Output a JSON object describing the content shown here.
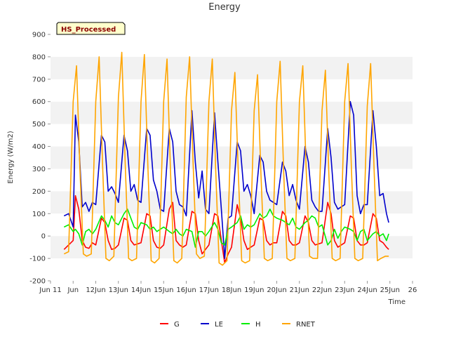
{
  "chart_data": {
    "type": "line",
    "title": "Energy",
    "xlabel": "Time",
    "ylabel": "Energy (W/m2)",
    "badge": "HS_Processed",
    "ylim": [
      -200,
      900
    ],
    "xlim": [
      10,
      26
    ],
    "yticks": [
      -200,
      -100,
      0,
      100,
      200,
      300,
      400,
      500,
      600,
      700,
      800,
      900
    ],
    "xticks": [
      {
        "value": 10,
        "label": "Jun 11"
      },
      {
        "value": 11,
        "label": "Jun"
      },
      {
        "value": 12,
        "label": "12Jun"
      },
      {
        "value": 13,
        "label": "13Jun"
      },
      {
        "value": 14,
        "label": "14Jun"
      },
      {
        "value": 15,
        "label": "15Jun"
      },
      {
        "value": 16,
        "label": "16Jun"
      },
      {
        "value": 17,
        "label": "17Jun"
      },
      {
        "value": 18,
        "label": "18Jun"
      },
      {
        "value": 19,
        "label": "19Jun"
      },
      {
        "value": 20,
        "label": "20Jun"
      },
      {
        "value": 21,
        "label": "21Jun"
      },
      {
        "value": 22,
        "label": "22Jun"
      },
      {
        "value": 23,
        "label": "23Jun"
      },
      {
        "value": 24,
        "label": "24Jun"
      },
      {
        "value": 25,
        "label": "25Jun"
      },
      {
        "value": 26,
        "label": "26"
      }
    ],
    "legend_position": "bottom",
    "grid": "horizontal bands",
    "series": [
      {
        "name": "G",
        "color": "#ff0000",
        "x": [
          10.6,
          10.8,
          11.0,
          11.1,
          11.25,
          11.4,
          11.55,
          11.7,
          11.85,
          12.0,
          12.25,
          12.4,
          12.55,
          12.7,
          12.85,
          13.0,
          13.25,
          13.4,
          13.55,
          13.7,
          13.85,
          14.0,
          14.25,
          14.4,
          14.55,
          14.7,
          14.85,
          15.0,
          15.25,
          15.4,
          15.55,
          15.7,
          15.85,
          16.0,
          16.25,
          16.4,
          16.55,
          16.7,
          16.85,
          17.0,
          17.25,
          17.4,
          17.55,
          17.7,
          17.85,
          18.0,
          18.25,
          18.4,
          18.55,
          18.7,
          18.85,
          19.0,
          19.25,
          19.4,
          19.55,
          19.7,
          19.85,
          20.0,
          20.25,
          20.4,
          20.55,
          20.7,
          20.85,
          21.0,
          21.25,
          21.4,
          21.55,
          21.7,
          21.85,
          22.0,
          22.25,
          22.4,
          22.55,
          22.7,
          22.85,
          23.0,
          23.25,
          23.4,
          23.55,
          23.7,
          23.85,
          24.0,
          24.25,
          24.4,
          24.55,
          24.7,
          24.85,
          24.95
        ],
        "y": [
          -60,
          -40,
          -20,
          180,
          120,
          -20,
          -50,
          -55,
          -30,
          -40,
          80,
          60,
          -20,
          -60,
          -55,
          -40,
          80,
          70,
          -20,
          -40,
          -35,
          -30,
          100,
          90,
          -20,
          -50,
          -55,
          -40,
          120,
          150,
          -20,
          -40,
          -50,
          -40,
          110,
          100,
          -20,
          -80,
          -60,
          -40,
          100,
          90,
          -20,
          -120,
          -80,
          -50,
          140,
          80,
          -20,
          -60,
          -50,
          -40,
          80,
          70,
          -20,
          -40,
          -30,
          -30,
          110,
          90,
          -20,
          -40,
          -40,
          -30,
          90,
          60,
          -20,
          -40,
          -35,
          -30,
          150,
          100,
          -20,
          -50,
          -40,
          -30,
          90,
          80,
          -20,
          -40,
          -40,
          -30,
          100,
          80,
          -20,
          -30,
          -50,
          -60
        ]
      },
      {
        "name": "LE",
        "color": "#0000cc",
        "x": [
          10.6,
          10.8,
          11.0,
          11.1,
          11.25,
          11.4,
          11.55,
          11.7,
          11.85,
          12.0,
          12.25,
          12.4,
          12.55,
          12.7,
          12.85,
          13.0,
          13.25,
          13.4,
          13.55,
          13.7,
          13.85,
          14.0,
          14.25,
          14.4,
          14.55,
          14.7,
          14.85,
          15.0,
          15.25,
          15.4,
          15.55,
          15.7,
          15.85,
          16.0,
          16.25,
          16.4,
          16.55,
          16.7,
          16.85,
          17.0,
          17.25,
          17.4,
          17.55,
          17.7,
          17.85,
          18.0,
          18.25,
          18.4,
          18.55,
          18.7,
          18.85,
          19.0,
          19.25,
          19.4,
          19.55,
          19.7,
          19.85,
          20.0,
          20.25,
          20.4,
          20.55,
          20.7,
          20.85,
          21.0,
          21.25,
          21.4,
          21.55,
          21.7,
          21.85,
          22.0,
          22.25,
          22.4,
          22.55,
          22.7,
          22.85,
          23.0,
          23.25,
          23.4,
          23.55,
          23.7,
          23.85,
          24.0,
          24.25,
          24.4,
          24.55,
          24.7,
          24.85,
          24.95
        ],
        "y": [
          90,
          100,
          40,
          540,
          420,
          130,
          150,
          110,
          150,
          140,
          450,
          420,
          200,
          220,
          190,
          150,
          450,
          380,
          200,
          230,
          160,
          150,
          480,
          450,
          250,
          200,
          120,
          110,
          480,
          420,
          200,
          140,
          130,
          90,
          560,
          330,
          170,
          290,
          120,
          100,
          550,
          330,
          120,
          -100,
          80,
          90,
          420,
          380,
          200,
          230,
          180,
          100,
          360,
          330,
          200,
          160,
          150,
          140,
          330,
          290,
          180,
          230,
          160,
          120,
          400,
          330,
          160,
          130,
          110,
          110,
          480,
          350,
          150,
          120,
          130,
          140,
          600,
          540,
          180,
          100,
          140,
          140,
          560,
          400,
          180,
          190,
          100,
          60
        ]
      },
      {
        "name": "H",
        "color": "#00ee00",
        "x": [
          10.6,
          10.8,
          11.0,
          11.1,
          11.25,
          11.4,
          11.55,
          11.7,
          11.85,
          12.0,
          12.25,
          12.4,
          12.55,
          12.7,
          12.85,
          13.0,
          13.25,
          13.4,
          13.55,
          13.7,
          13.85,
          14.0,
          14.25,
          14.4,
          14.55,
          14.7,
          14.85,
          15.0,
          15.25,
          15.4,
          15.55,
          15.7,
          15.85,
          16.0,
          16.25,
          16.4,
          16.55,
          16.7,
          16.85,
          17.0,
          17.25,
          17.4,
          17.55,
          17.7,
          17.85,
          18.0,
          18.25,
          18.4,
          18.55,
          18.7,
          18.85,
          19.0,
          19.25,
          19.4,
          19.55,
          19.7,
          19.85,
          20.0,
          20.25,
          20.4,
          20.55,
          20.7,
          20.85,
          21.0,
          21.25,
          21.4,
          21.55,
          21.7,
          21.85,
          22.0,
          22.25,
          22.4,
          22.55,
          22.7,
          22.85,
          23.0,
          23.25,
          23.4,
          23.55,
          23.7,
          23.85,
          24.0,
          24.25,
          24.4,
          24.55,
          24.7,
          24.85,
          24.95
        ],
        "y": [
          40,
          50,
          20,
          30,
          10,
          -40,
          20,
          30,
          10,
          30,
          90,
          70,
          40,
          90,
          60,
          50,
          100,
          120,
          80,
          40,
          30,
          60,
          50,
          30,
          40,
          20,
          30,
          40,
          20,
          10,
          30,
          10,
          0,
          30,
          20,
          -50,
          20,
          20,
          0,
          20,
          60,
          30,
          -30,
          -40,
          30,
          40,
          60,
          90,
          30,
          50,
          40,
          50,
          100,
          80,
          90,
          120,
          90,
          80,
          70,
          60,
          50,
          80,
          40,
          30,
          60,
          70,
          90,
          80,
          40,
          50,
          -40,
          -20,
          30,
          -10,
          20,
          40,
          30,
          20,
          -20,
          20,
          30,
          -20,
          10,
          20,
          0,
          10,
          -20,
          10
        ]
      },
      {
        "name": "RNET",
        "color": "#ffa500",
        "x": [
          10.6,
          10.8,
          11.0,
          11.15,
          11.3,
          11.45,
          11.6,
          11.8,
          12.0,
          12.15,
          12.3,
          12.45,
          12.6,
          12.8,
          13.0,
          13.15,
          13.3,
          13.45,
          13.6,
          13.8,
          14.0,
          14.15,
          14.3,
          14.45,
          14.6,
          14.8,
          15.0,
          15.15,
          15.3,
          15.45,
          15.6,
          15.8,
          16.0,
          16.15,
          16.3,
          16.45,
          16.6,
          16.8,
          17.0,
          17.15,
          17.3,
          17.45,
          17.6,
          17.8,
          18.0,
          18.15,
          18.3,
          18.45,
          18.6,
          18.8,
          19.0,
          19.15,
          19.3,
          19.45,
          19.6,
          19.8,
          20.0,
          20.15,
          20.3,
          20.45,
          20.6,
          20.8,
          21.0,
          21.15,
          21.3,
          21.45,
          21.6,
          21.8,
          22.0,
          22.15,
          22.3,
          22.45,
          22.6,
          22.8,
          23.0,
          23.15,
          23.3,
          23.45,
          23.6,
          23.8,
          24.0,
          24.15,
          24.3,
          24.45,
          24.6,
          24.8,
          24.95
        ],
        "y": [
          -80,
          -70,
          600,
          760,
          300,
          -80,
          -90,
          -80,
          600,
          800,
          320,
          -100,
          -110,
          -90,
          620,
          820,
          330,
          -100,
          -110,
          -100,
          600,
          810,
          320,
          -110,
          -120,
          -100,
          600,
          790,
          300,
          -110,
          -120,
          -100,
          620,
          800,
          330,
          -80,
          -100,
          -90,
          600,
          790,
          300,
          -120,
          -130,
          -110,
          560,
          730,
          280,
          -110,
          -120,
          -110,
          560,
          720,
          280,
          -100,
          -110,
          -100,
          600,
          780,
          300,
          -100,
          -110,
          -100,
          600,
          760,
          300,
          -90,
          -100,
          -100,
          560,
          740,
          280,
          -100,
          -110,
          -100,
          600,
          770,
          300,
          -100,
          -110,
          -100,
          580,
          770,
          300,
          -110,
          -100,
          -90,
          -90
        ]
      }
    ]
  }
}
